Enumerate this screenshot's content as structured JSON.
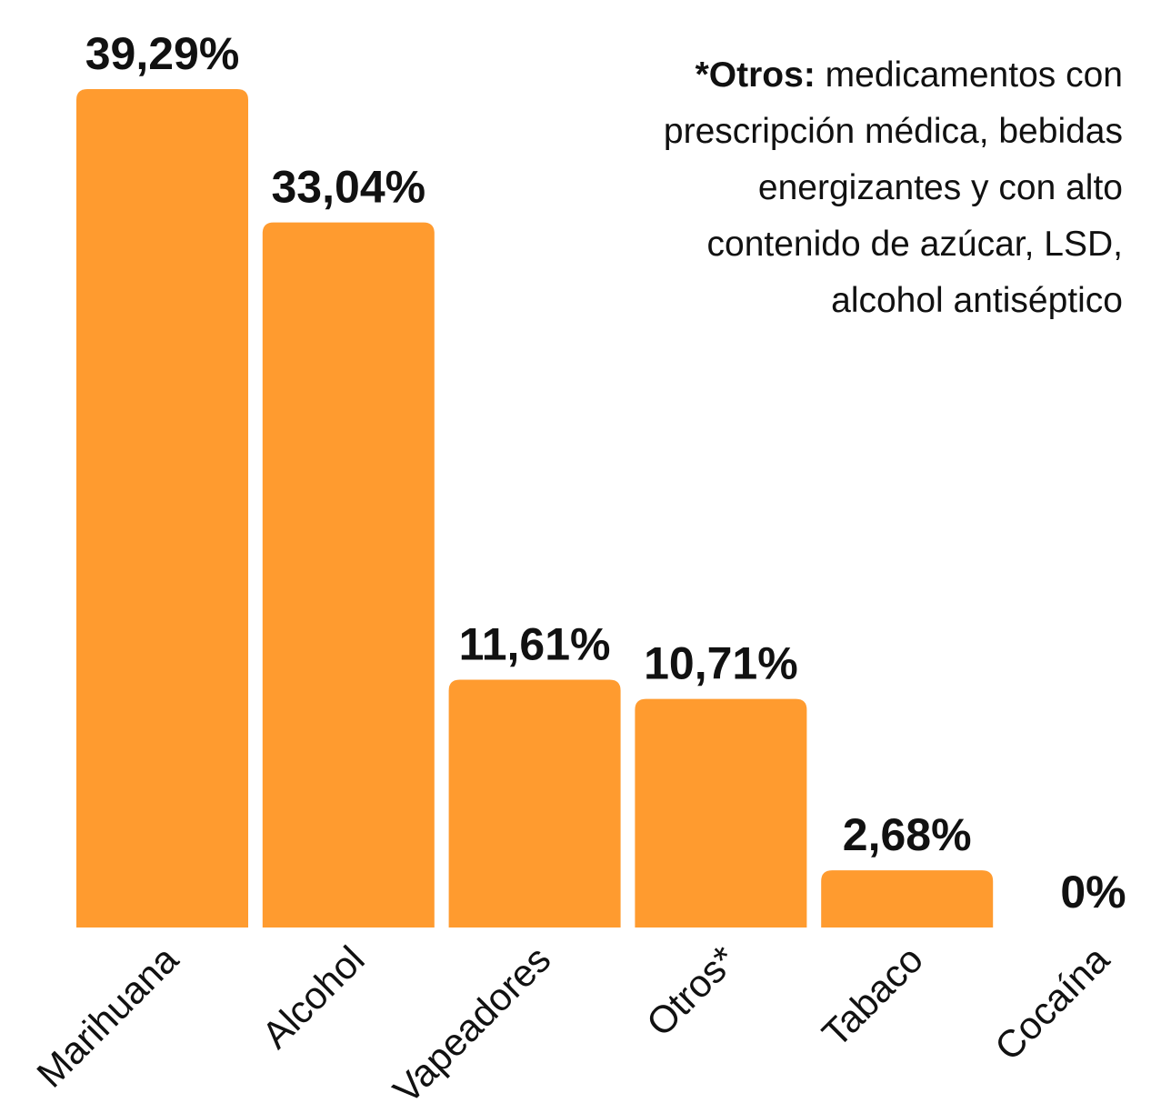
{
  "chart_data": {
    "type": "bar",
    "categories": [
      "Marihuana",
      "Alcohol",
      "Vapeadores",
      "Otros*",
      "Tabaco",
      "Cocaína"
    ],
    "values": [
      39.29,
      33.04,
      11.61,
      10.71,
      2.68,
      0
    ],
    "value_labels": [
      "39,29%",
      "33,04%",
      "11,61%",
      "10,71%",
      "2,68%",
      "0%"
    ],
    "title": "",
    "xlabel": "",
    "ylabel": "",
    "ylim": [
      0,
      39.29
    ],
    "grid": false,
    "legend": "none",
    "colors": {
      "bar": "#FF9B2F",
      "text": "#111111"
    }
  },
  "note": {
    "label": "*Otros:",
    "text": "medicamentos con prescripción médica, bebidas energizantes y con alto contenido de azúcar, LSD, alcohol antiséptico"
  }
}
